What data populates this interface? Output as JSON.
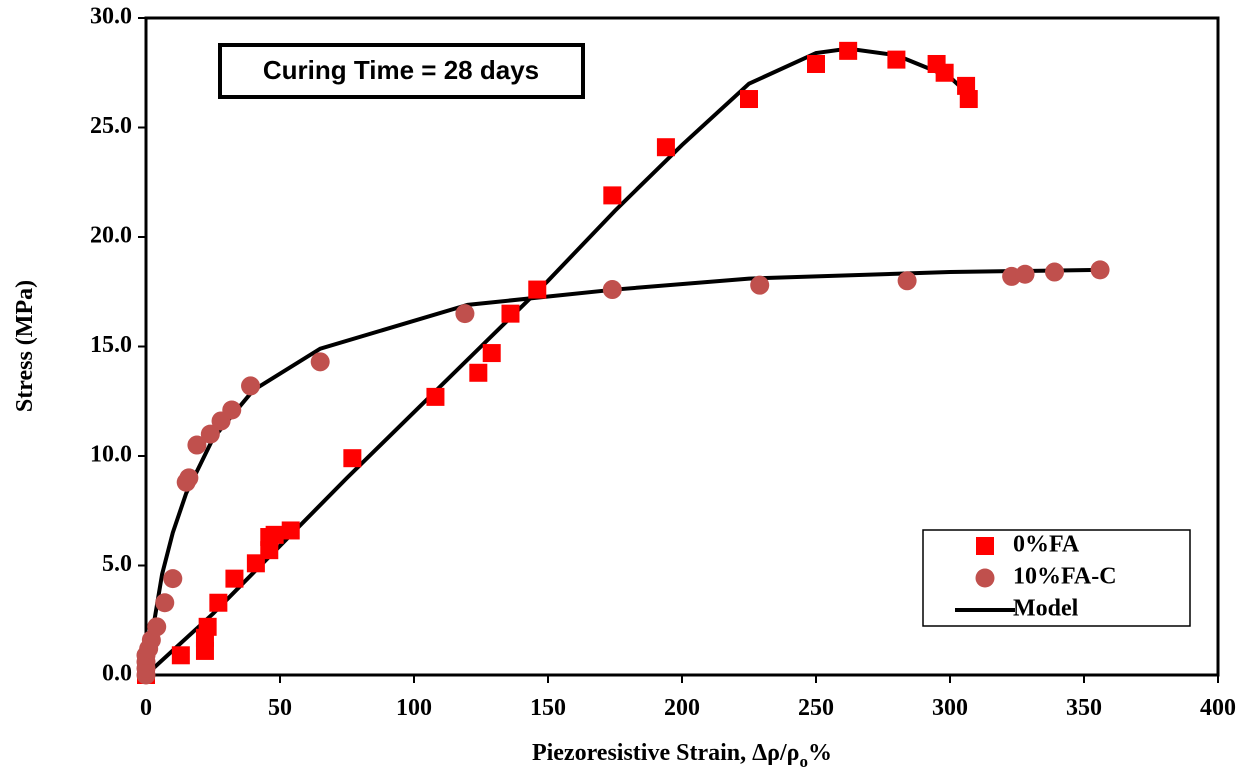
{
  "chart_data": {
    "type": "scatter",
    "xlabel": [
      "Piezoresistive Strain,  Δρ/ρ",
      "o",
      "%"
    ],
    "ylabel": "Stress (MPa)",
    "annotation": "Curing Time = 28 days",
    "xlim": [
      0,
      400
    ],
    "ylim": [
      0,
      30
    ],
    "xticks": [
      0,
      50,
      100,
      150,
      200,
      250,
      300,
      350,
      400
    ],
    "yticks": [
      {
        "value": 0,
        "label": "0.0"
      },
      {
        "value": 5,
        "label": "5.0"
      },
      {
        "value": 10,
        "label": "10.0"
      },
      {
        "value": 15,
        "label": "15.0"
      },
      {
        "value": 20,
        "label": "20.0"
      },
      {
        "value": 25,
        "label": "25.0"
      },
      {
        "value": 30,
        "label": "30.0"
      }
    ],
    "legend": "lower right",
    "series": [
      {
        "name": "0%FA",
        "marker": "square",
        "color": "#ff0000",
        "x": [
          0,
          13,
          22,
          22,
          23,
          27,
          33,
          41,
          46,
          46,
          48,
          54,
          77,
          108,
          124,
          129,
          136,
          146,
          174,
          194,
          225,
          250,
          262,
          280,
          295,
          298,
          306,
          307
        ],
        "values": [
          0,
          0.9,
          1.1,
          1.7,
          2.2,
          3.3,
          4.4,
          5.1,
          5.7,
          6.3,
          6.4,
          6.6,
          9.9,
          12.7,
          13.8,
          14.7,
          16.5,
          17.6,
          21.9,
          24.1,
          26.3,
          27.9,
          28.5,
          28.1,
          27.9,
          27.5,
          26.9,
          26.3
        ]
      },
      {
        "name": "10%FA-C",
        "marker": "circle",
        "color": "#c0504d",
        "x": [
          0,
          0,
          0,
          0,
          1,
          2,
          4,
          7,
          10,
          15,
          16,
          19,
          24,
          28,
          32,
          39,
          65,
          119,
          174,
          229,
          284,
          323,
          328,
          339,
          356
        ],
        "values": [
          0,
          0.3,
          0.6,
          0.9,
          1.2,
          1.6,
          2.2,
          3.3,
          4.4,
          8.8,
          9.0,
          10.5,
          11.0,
          11.6,
          12.1,
          13.2,
          14.3,
          16.5,
          17.6,
          17.8,
          18.0,
          18.2,
          18.3,
          18.4,
          18.5
        ]
      }
    ],
    "model": {
      "name": "Model",
      "color": "#000000",
      "lines": [
        {
          "x": [
            0,
            25,
            50,
            75,
            100,
            125,
            150,
            175,
            200,
            225,
            250,
            262,
            280,
            300,
            307
          ],
          "values": [
            0,
            2.8,
            5.9,
            9,
            12,
            15,
            18,
            21.2,
            24.2,
            27,
            28.4,
            28.6,
            28.3,
            27.3,
            26.5
          ]
        },
        {
          "x": [
            0,
            3,
            6,
            10,
            15,
            25,
            40,
            65,
            120,
            175,
            225,
            300,
            356
          ],
          "values": [
            0,
            2.4,
            4.6,
            6.5,
            8.3,
            10.8,
            13,
            14.9,
            16.9,
            17.6,
            18.1,
            18.4,
            18.5
          ]
        }
      ]
    }
  }
}
